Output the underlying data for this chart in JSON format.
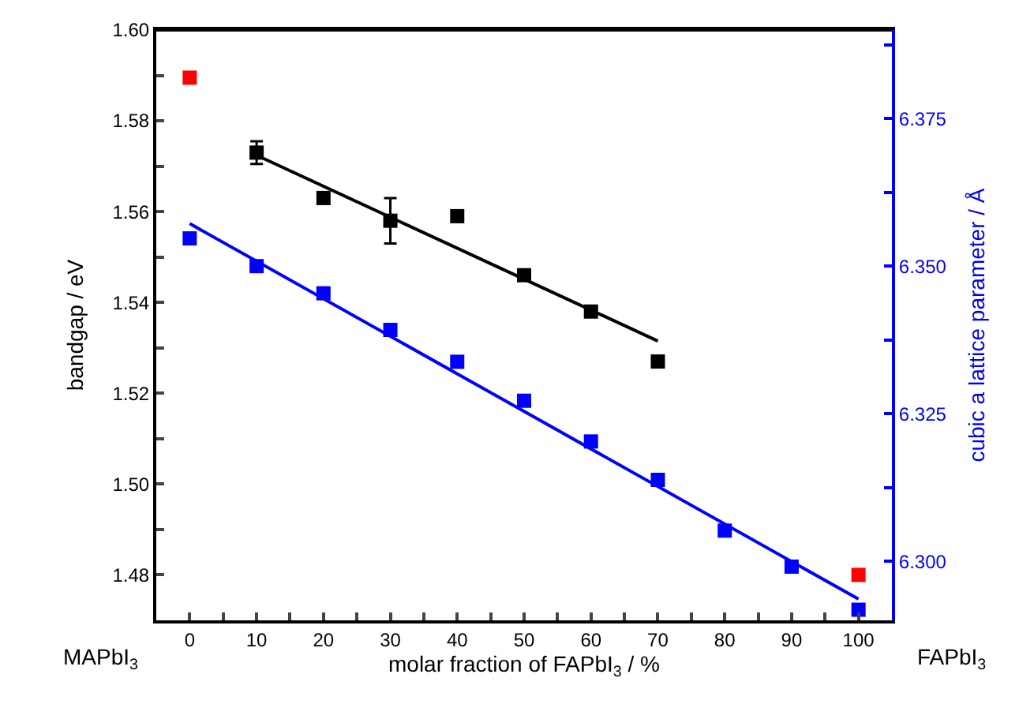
{
  "chart_data": {
    "type": "scatter",
    "xlabel": "molar fraction of FAPbI$_{3}$ / %",
    "ylabel": "bandgap / eV",
    "y2label": "cubic a lattice parameter / Å",
    "series": [
      {
        "color": "#000000",
        "x": [
          10,
          20,
          30,
          40,
          50,
          60,
          70
        ],
        "values": [
          1.573,
          1.563,
          1.558,
          1.559,
          1.546,
          1.538,
          1.527
        ],
        "errors": [
          0.0025,
          null,
          0.005,
          null,
          null,
          null,
          null
        ]
      },
      {
        "type": "line",
        "color": "#000000",
        "x": [
          10,
          70
        ],
        "values": [
          1.5724,
          1.5315
        ],
        "marker": "none"
      },
      {
        "color": "#ff0000",
        "x": [
          0,
          100
        ],
        "values": [
          1.5895,
          1.48
        ]
      },
      {
        "color": "#0000ff",
        "axis": "y2",
        "x": [
          0,
          10,
          20,
          30,
          40,
          50,
          60,
          70,
          80,
          90,
          100
        ],
        "values": [
          6.3547,
          6.35,
          6.3454,
          6.3392,
          6.3338,
          6.3272,
          6.3203,
          6.3138,
          6.3052,
          6.2991,
          6.2918
        ]
      },
      {
        "type": "line",
        "color": "#0000ff",
        "axis": "y2",
        "x": [
          0,
          100
        ],
        "values": [
          6.3572,
          6.2936
        ],
        "marker": "none"
      }
    ],
    "xlim": [
      -5,
      105
    ],
    "ylim": [
      1.47,
      1.6
    ],
    "y2lim": [
      6.29,
      6.39
    ],
    "xticks": [
      0,
      {
        "value": 5,
        "label": null
      },
      10,
      {
        "value": 15,
        "label": null
      },
      20,
      {
        "value": 25,
        "label": null
      },
      30,
      {
        "value": 35,
        "label": null
      },
      40,
      {
        "value": 45,
        "label": null
      },
      50,
      {
        "value": 55,
        "label": null
      },
      60,
      {
        "value": 65,
        "label": null
      },
      70,
      {
        "value": 75,
        "label": null
      },
      80,
      {
        "value": 85,
        "label": null
      },
      90,
      {
        "value": 95,
        "label": null
      },
      100
    ],
    "yticks": [
      1.48,
      {
        "value": 1.49,
        "label": null
      },
      {
        "value": 1.5,
        "label": "1.50"
      },
      {
        "value": 1.51,
        "label": null
      },
      1.52,
      {
        "value": 1.53,
        "label": null
      },
      1.54,
      {
        "value": 1.55,
        "label": null
      },
      1.56,
      {
        "value": 1.57,
        "label": null
      },
      1.58,
      {
        "value": 1.59,
        "label": null
      },
      {
        "value": 1.6,
        "label": "1.60"
      }
    ],
    "y2ticks": [
      {
        "value": 6.3,
        "label": "6.300"
      },
      {
        "value": 6.3125,
        "label": null
      },
      6.325,
      {
        "value": 6.3375,
        "label": null
      },
      {
        "value": 6.35,
        "label": "6.350"
      },
      {
        "value": 6.3625,
        "label": null
      },
      6.375,
      {
        "value": 6.3875,
        "label": null
      }
    ],
    "marker": "square",
    "annotations": [
      "MAPbI$_{3}$",
      "FAPbI$_{3}$"
    ]
  }
}
